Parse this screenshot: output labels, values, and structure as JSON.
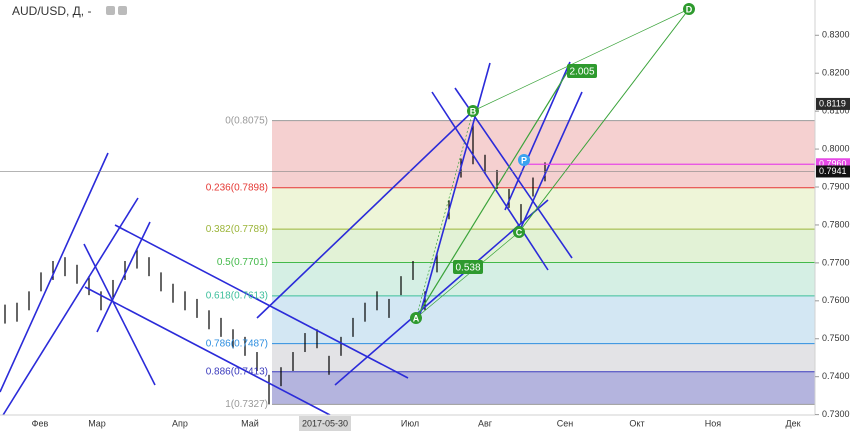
{
  "chart_data": {
    "type": "ohlc",
    "title": "AUD/USD, Д, -",
    "x_labels": [
      "Фев",
      "Мар",
      "Апр",
      "Май",
      "2017-05-30",
      "Июл",
      "Авг",
      "Сен",
      "Окт",
      "Ноя",
      "Дек"
    ],
    "color": "#000000",
    "high": [
      0.759,
      0.7595,
      0.7625,
      0.7675,
      0.7705,
      0.7715,
      0.7695,
      0.7665,
      0.7625,
      0.7655,
      0.7705,
      0.7735,
      0.7715,
      0.7675,
      0.7645,
      0.7625,
      0.7605,
      0.7575,
      0.7555,
      0.7525,
      0.7505,
      0.7465,
      0.7405,
      0.7425,
      0.7465,
      0.7515,
      0.7525,
      0.7455,
      0.7505,
      0.7555,
      0.7595,
      0.7625,
      0.7605,
      0.7665,
      0.7705,
      0.7625,
      0.7725,
      0.7865,
      0.7975,
      0.8065,
      0.7985,
      0.7945,
      0.7895,
      0.7855,
      0.7925,
      0.7965
    ],
    "low": [
      0.754,
      0.7545,
      0.7575,
      0.7625,
      0.7655,
      0.7665,
      0.7645,
      0.7615,
      0.7575,
      0.7605,
      0.7655,
      0.7685,
      0.7665,
      0.7625,
      0.7595,
      0.7575,
      0.7555,
      0.7525,
      0.7505,
      0.7475,
      0.7455,
      0.7415,
      0.7327,
      0.7375,
      0.7415,
      0.7465,
      0.7475,
      0.7405,
      0.7455,
      0.7505,
      0.7545,
      0.7575,
      0.7555,
      0.7615,
      0.7655,
      0.7575,
      0.7675,
      0.7815,
      0.7925,
      0.796,
      0.7935,
      0.7895,
      0.7845,
      0.7805,
      0.7875,
      0.7915
    ],
    "ylim": [
      0.7299,
      0.8393
    ],
    "yticks": [
      {
        "value": 0.73,
        "label": "0.7300"
      },
      {
        "value": 0.74,
        "label": "0.7400"
      },
      {
        "value": 0.75,
        "label": "0.7500"
      },
      {
        "value": 0.76,
        "label": "0.7600"
      },
      {
        "value": 0.77,
        "label": "0.7700"
      },
      {
        "value": 0.78,
        "label": "0.7800"
      },
      {
        "value": 0.79,
        "label": "0.7900"
      },
      {
        "value": 0.8,
        "label": "0.8000"
      },
      {
        "value": 0.81,
        "label": "0.8100"
      },
      {
        "value": 0.82,
        "label": "0.8200"
      },
      {
        "value": 0.83,
        "label": "0.8300"
      }
    ],
    "fib_levels": [
      {
        "label": "0(0.8075)",
        "price": 0.8075,
        "color": "#9a9a9a"
      },
      {
        "label": "0.236(0.7898)",
        "price": 0.7898,
        "color": "#e53935"
      },
      {
        "label": "0.382(0.7789)",
        "price": 0.7789,
        "color": "#9cb53a"
      },
      {
        "label": "0.5(0.7701)",
        "price": 0.7701,
        "color": "#43b94a"
      },
      {
        "label": "0.618(0.7613)",
        "price": 0.7613,
        "color": "#3dbf9c"
      },
      {
        "label": "0.786(0.7487)",
        "price": 0.7487,
        "color": "#2f8fe0"
      },
      {
        "label": "0.886(0.7413)",
        "price": 0.7413,
        "color": "#3b3bbd"
      },
      {
        "label": "1(0.7327)",
        "price": 0.7327,
        "color": "#9a9a9a"
      }
    ],
    "fib_fills": [
      "#f5d0d0",
      "#eef5d8",
      "#e2f2d6",
      "#d5efe4",
      "#d3e7f3",
      "#e3e3e6",
      "#b4b4de"
    ],
    "price_tags": [
      {
        "value": 0.8119,
        "label": "0.8119",
        "color": "#2b2b2b"
      },
      {
        "value": 0.796,
        "label": "0.7960",
        "color": "#e64ae6"
      },
      {
        "value": 0.7941,
        "label": "0.7941",
        "color": "#111111"
      }
    ],
    "pattern_points": [
      "A",
      "B",
      "C",
      "D",
      "P"
    ],
    "ratios": [
      "2.005",
      "0.538"
    ]
  }
}
